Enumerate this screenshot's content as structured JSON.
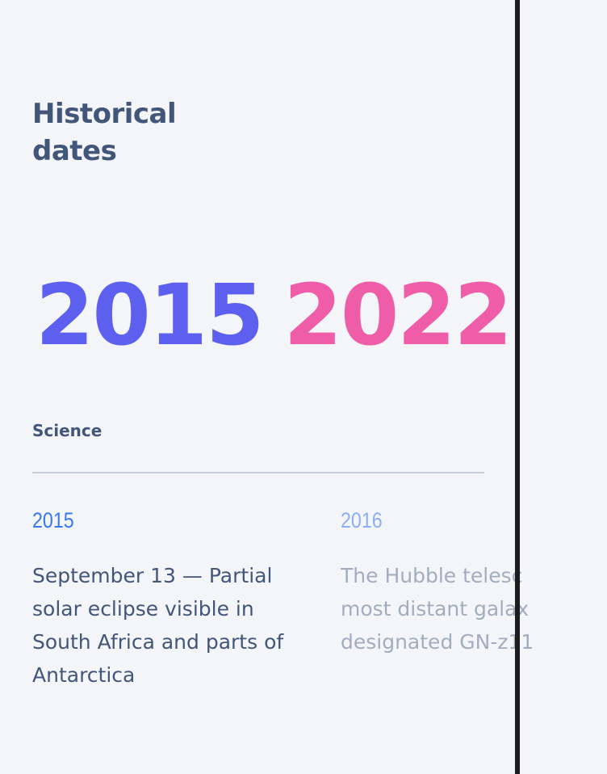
{
  "header": {
    "title": "Historical dates"
  },
  "period": {
    "start_year": "2015",
    "end_year": "2022"
  },
  "category": {
    "label": "Science"
  },
  "events": [
    {
      "year": "2015",
      "text": "September 13 — Partial solar eclipse visible in South Africa and parts of Antarctica"
    },
    {
      "year": "2016",
      "line1": "The Hubble telesc",
      "line2": "most distant galax",
      "line3": "designated GN-z11"
    }
  ],
  "colors": {
    "title": "#42567a",
    "start_year": "#5d5fef",
    "end_year": "#ef5da8",
    "event_year": "#3877ee",
    "background": "#f3f5f9"
  }
}
